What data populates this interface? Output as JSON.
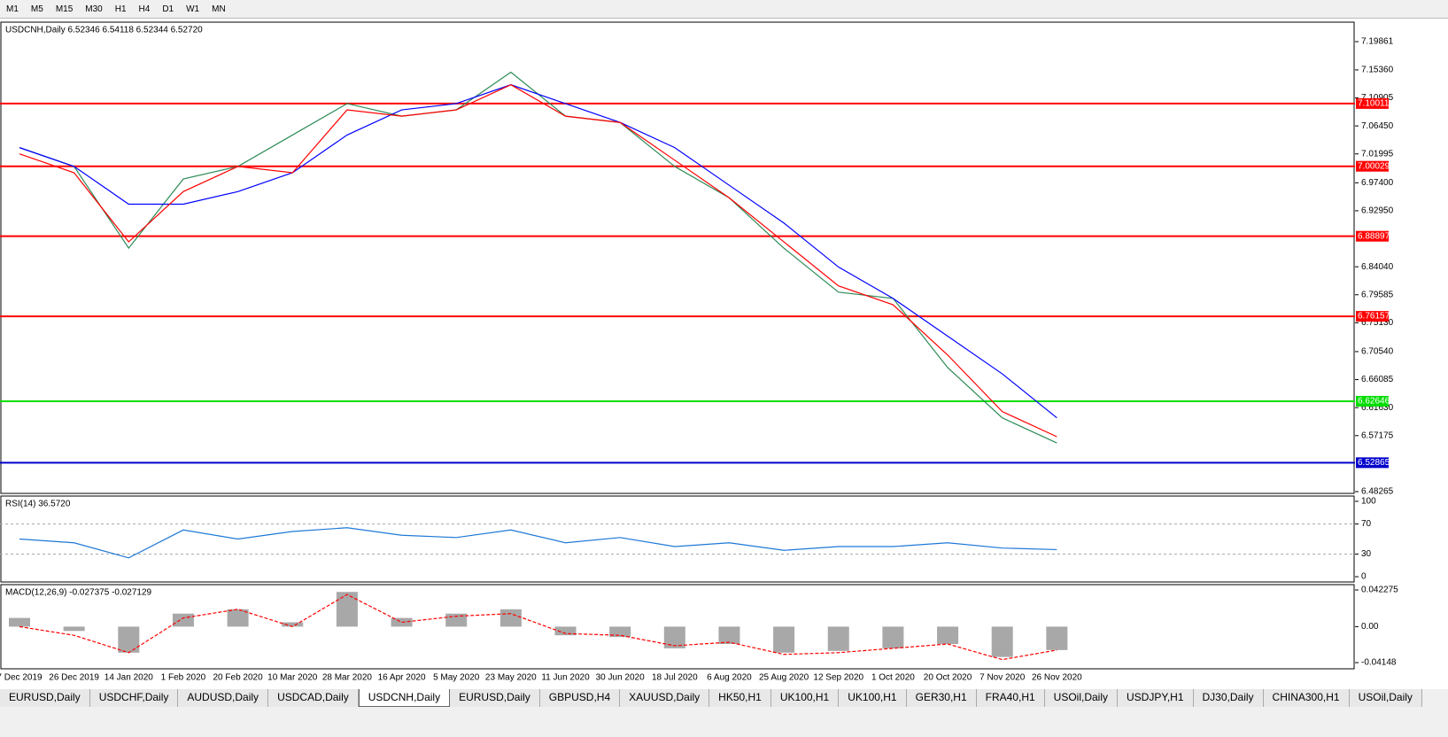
{
  "toolbar": {
    "timeframes": [
      "M1",
      "M5",
      "M15",
      "M30",
      "H1",
      "H4",
      "D1",
      "W1",
      "MN"
    ]
  },
  "chart_data": [
    {
      "type": "line",
      "title": "USDCNH,Daily 6.52346 6.54118 6.52344 6.52720",
      "categories": [
        "7 Dec 2019",
        "26 Dec 2019",
        "14 Jan 2020",
        "1 Feb 2020",
        "20 Feb 2020",
        "10 Mar 2020",
        "28 Mar 2020",
        "16 Apr 2020",
        "5 May 2020",
        "23 May 2020",
        "11 Jun 2020",
        "30 Jun 2020",
        "18 Jul 2020",
        "6 Aug 2020",
        "25 Aug 2020",
        "12 Sep 2020",
        "1 Oct 2020",
        "20 Oct 2020",
        "7 Nov 2020",
        "26 Nov 2020"
      ],
      "series": [
        {
          "color": "#2e8b57",
          "values": [
            7.03,
            7.0,
            6.87,
            6.98,
            7.0,
            7.05,
            7.1,
            7.08,
            7.09,
            7.15,
            7.08,
            7.07,
            7.0,
            6.95,
            6.87,
            6.8,
            6.79,
            6.68,
            6.6,
            6.56
          ]
        },
        {
          "color": "#0000ff",
          "values": [
            7.03,
            7.0,
            6.94,
            6.94,
            6.96,
            6.99,
            7.05,
            7.09,
            7.1,
            7.13,
            7.1,
            7.07,
            7.03,
            6.97,
            6.91,
            6.84,
            6.79,
            6.73,
            6.67,
            6.6
          ]
        },
        {
          "color": "#ff0000",
          "values": [
            7.02,
            6.99,
            6.88,
            6.96,
            7.0,
            6.99,
            7.09,
            7.08,
            7.09,
            7.13,
            7.08,
            7.07,
            7.01,
            6.95,
            6.88,
            6.81,
            6.78,
            6.7,
            6.61,
            6.57
          ]
        }
      ],
      "levels": [
        {
          "value": 7.10011,
          "color": "#ff0000"
        },
        {
          "value": 7.00029,
          "color": "#ff0000"
        },
        {
          "value": 6.88897,
          "color": "#ff0000"
        },
        {
          "value": 6.76157,
          "color": "#ff0000"
        },
        {
          "value": 6.62646,
          "color": "#00dd00"
        },
        {
          "value": 6.52865,
          "color": "#0000cc"
        }
      ],
      "ylim": [
        6.4798,
        7.2296
      ],
      "yticks": [
        {
          "value": 7.19861,
          "label": "7.19861"
        },
        {
          "value": 7.1536,
          "label": "7.15360"
        },
        {
          "value": 7.10905,
          "label": "7.10905"
        },
        {
          "value": 7.0645,
          "label": "7.06450"
        },
        {
          "value": 7.01995,
          "label": "7.01995"
        },
        {
          "value": 6.974,
          "label": "6.97400"
        },
        {
          "value": 6.9295,
          "label": "6.92950"
        },
        {
          "value": 6.8404,
          "label": "6.84040"
        },
        {
          "value": 6.79585,
          "label": "6.79585"
        },
        {
          "value": 6.7513,
          "label": "6.75130"
        },
        {
          "value": 6.7054,
          "label": "6.70540"
        },
        {
          "value": 6.66085,
          "label": "6.66085"
        },
        {
          "value": 6.6163,
          "label": "6.61630"
        },
        {
          "value": 6.57175,
          "label": "6.57175"
        },
        {
          "value": 6.48265,
          "label": "6.48265"
        }
      ]
    },
    {
      "type": "line",
      "title": "RSI(14) 36.5720",
      "series": [
        {
          "color": "#1e78d7",
          "values": [
            50,
            45,
            25,
            62,
            50,
            60,
            65,
            55,
            52,
            62,
            45,
            52,
            40,
            45,
            35,
            40,
            40,
            45,
            38,
            36
          ]
        }
      ],
      "ylim": [
        -7,
        107
      ],
      "yticks": [
        0,
        30,
        70,
        100
      ]
    },
    {
      "type": "macd",
      "title": "MACD(12,26,9) -0.027375 -0.027129",
      "series": [
        {
          "color": "#a8a8a8",
          "values": [
            0.01,
            -0.005,
            -0.03,
            0.015,
            0.02,
            0.005,
            0.04,
            0.01,
            0.015,
            0.02,
            -0.01,
            -0.012,
            -0.025,
            -0.02,
            -0.03,
            -0.028,
            -0.025,
            -0.02,
            -0.035,
            -0.027
          ]
        },
        {
          "color": "#ff0000",
          "values": [
            0.0,
            -0.01,
            -0.03,
            0.01,
            0.02,
            0.0,
            0.037,
            0.005,
            0.012,
            0.015,
            -0.008,
            -0.01,
            -0.022,
            -0.018,
            -0.032,
            -0.03,
            -0.025,
            -0.02,
            -0.038,
            -0.027
          ]
        }
      ],
      "ylim": [
        -0.0486,
        0.0484
      ],
      "yticks": [
        0.042275,
        {
          "value": 0,
          "label": "0.00"
        },
        -0.04148
      ]
    }
  ],
  "tabs": [
    "EURUSD,Daily",
    "USDCHF,Daily",
    "AUDUSD,Daily",
    "USDCAD,Daily",
    "USDCNH,Daily",
    "EURUSD,Daily",
    "GBPUSD,H4",
    "XAUUSD,Daily",
    "HK50,H1",
    "UK100,H1",
    "UK100,H1",
    "GER30,H1",
    "FRA40,H1",
    "USOil,Daily",
    "USDJPY,H1",
    "DJ30,Daily",
    "CHINA300,H1",
    "USOil,Daily"
  ],
  "active_tab": 4
}
